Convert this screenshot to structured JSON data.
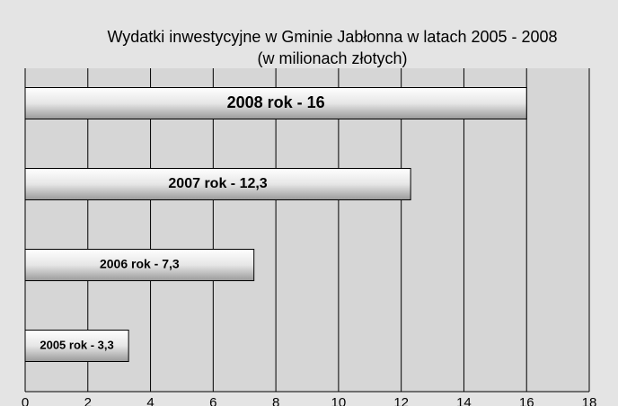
{
  "chart_data": {
    "type": "hbar",
    "title": "Wydatki inwestycyjne w Gminie Jabłonna w latach 2005 - 2008",
    "subtitle": "(w milionach złotych)",
    "values": [
      16,
      12.3,
      7.3,
      3.3
    ],
    "value_labels": [
      "2008 rok - 16",
      "2007 rok - 12,3",
      "2006 rok - 7,3",
      "2005 rok - 3,3"
    ],
    "xlim": [
      0,
      18
    ],
    "xticks": [
      0,
      2,
      4,
      6,
      8,
      10,
      12,
      14,
      16,
      18
    ],
    "grid": true
  }
}
